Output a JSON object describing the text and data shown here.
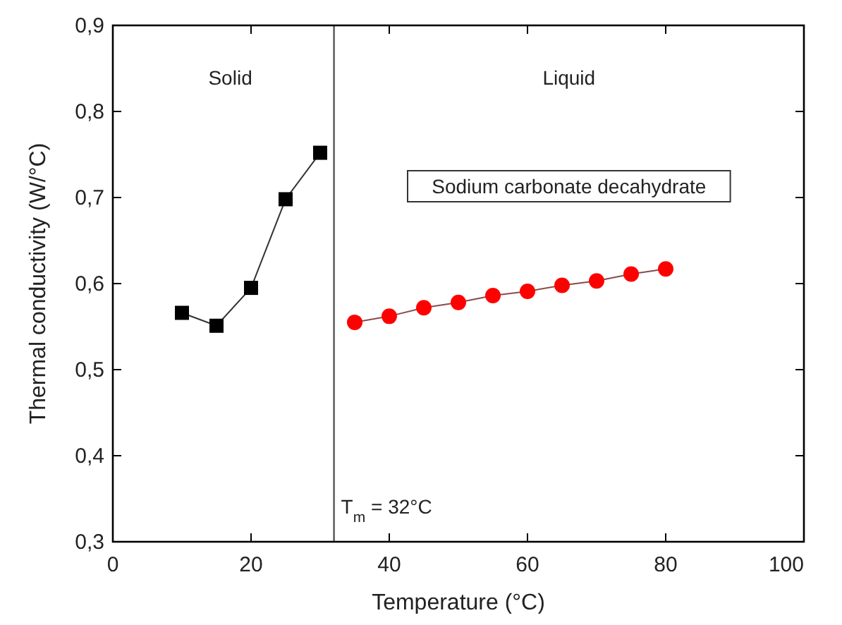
{
  "chart_data": {
    "type": "line",
    "xlabel": "Temperature (°C)",
    "ylabel": "Thermal conductivity (W/°C)",
    "xlim": [
      0,
      100
    ],
    "xticks": [
      0,
      20,
      40,
      60,
      80,
      100
    ],
    "ylim": [
      0.3,
      0.9
    ],
    "yticks": [
      {
        "value": 0.3,
        "label": "0,3"
      },
      {
        "value": 0.4,
        "label": "0,4"
      },
      {
        "value": 0.5,
        "label": "0,5"
      },
      {
        "value": 0.6,
        "label": "0,6"
      },
      {
        "value": 0.7,
        "label": "0,7"
      },
      {
        "value": 0.8,
        "label": "0,8"
      },
      {
        "value": 0.9,
        "label": "0,9"
      }
    ],
    "series": [
      {
        "color": "#000000",
        "marker": "square",
        "x": [
          10,
          15,
          20,
          25,
          30
        ],
        "values": [
          0.566,
          0.551,
          0.595,
          0.698,
          0.752
        ]
      },
      {
        "color": "#ff0000",
        "marker": "circle",
        "x": [
          35,
          40,
          45,
          50,
          55,
          60,
          65,
          70,
          75,
          80
        ],
        "values": [
          0.555,
          0.562,
          0.572,
          0.578,
          0.586,
          0.591,
          0.598,
          0.603,
          0.611,
          0.617
        ]
      }
    ],
    "ref_lines": [
      {
        "axis": "x",
        "value": 32,
        "label": "T$_{m}$ = 32°C",
        "color": "#555555"
      }
    ],
    "annotations": [
      "Solid",
      "Liquid",
      "Sodium carbonate decahydrate"
    ],
    "grid": false
  }
}
